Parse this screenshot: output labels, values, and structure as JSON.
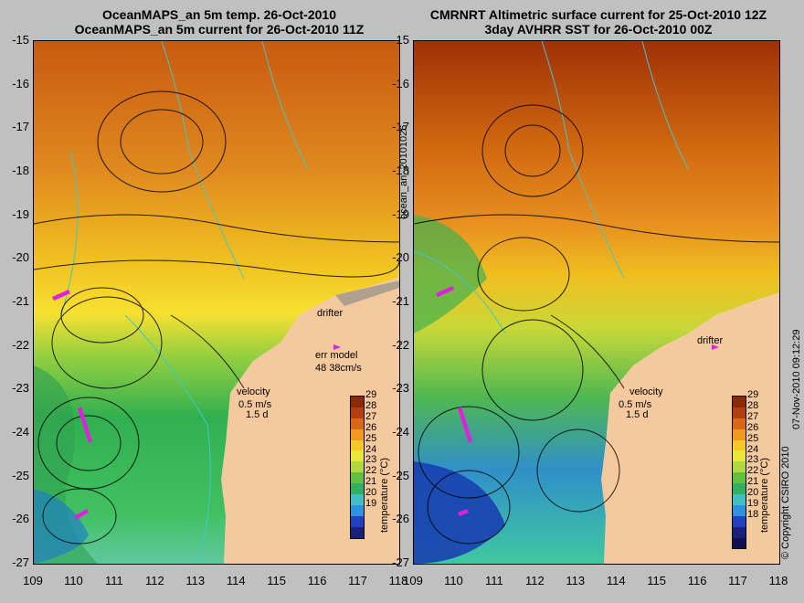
{
  "panels": [
    {
      "title_line1": "OceanMAPS_an 5m temp. 26-Oct-2010",
      "title_line2": "OceanMAPS_an 5m current for 26-Oct-2010 11Z",
      "drifter_label": "drifter",
      "err_model_label": "err model",
      "err_model_value": "48 38cm/s",
      "velocity_label": "velocity",
      "velocity_scale": "0.5 m/s",
      "velocity_days": "1.5 d"
    },
    {
      "title_line1": "CMRNRT Altimetric surface current for 25-Oct-2010 12Z",
      "title_line2": "3day AVHRR SST for 26-Oct-2010 00Z",
      "drifter_label": "drifter",
      "velocity_label": "velocity",
      "velocity_scale": "0.5 m/s",
      "velocity_days": "1.5 d"
    }
  ],
  "map": {
    "lon_ticks": [
      "109",
      "110",
      "111",
      "112",
      "113",
      "114",
      "115",
      "116",
      "117",
      "118"
    ],
    "lat_ticks": [
      "-15",
      "-16",
      "-17",
      "-18",
      "-19",
      "-20",
      "-21",
      "-22",
      "-23",
      "-24",
      "-25",
      "-26",
      "-27"
    ],
    "lon_range": [
      109,
      118
    ],
    "lat_range": [
      -27,
      -15
    ]
  },
  "colorbar": {
    "label": "temperature (°C)",
    "left_ticks": [
      "29",
      "28",
      "27",
      "26",
      "25",
      "24",
      "23",
      "22",
      "21",
      "20",
      "19"
    ],
    "right_ticks": [
      "29",
      "28",
      "27",
      "26",
      "25",
      "24",
      "23",
      "22",
      "21",
      "20",
      "19",
      "18"
    ]
  },
  "side_text": {
    "file_id": "ocean_an_20101026",
    "copyright": "© Copyright CSIRO 2010",
    "date": "07-Nov-2010 09:12:29"
  },
  "colors": {
    "land": "#f5c99e",
    "drifter": "#e020e0",
    "bathy_contour": "#40c8c8"
  }
}
